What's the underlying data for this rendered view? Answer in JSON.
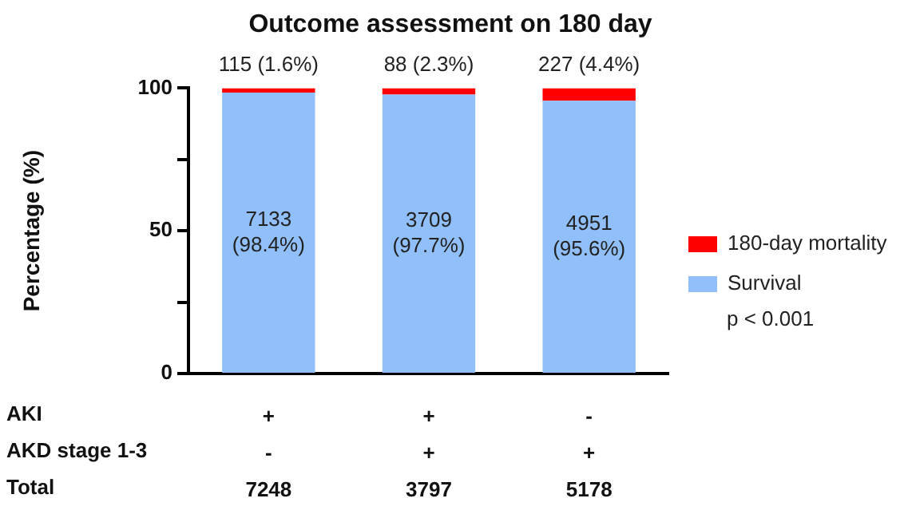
{
  "chart_data": {
    "type": "bar",
    "title": "Outcome assessment on 180 day",
    "ylabel": "Percentage (%)",
    "categories": [
      "+\n-\n7248",
      "+\n+\n3797",
      "-\n+\n5178"
    ],
    "stacked": true,
    "ylim": [
      0,
      100
    ],
    "yticks": [
      0,
      {
        "value": 25,
        "label": null
      },
      50,
      {
        "value": 75,
        "label": null
      },
      100
    ],
    "grid": false,
    "legend": "right",
    "series": [
      {
        "name": "Survival",
        "color": "#90bff9",
        "values": [
          98.4,
          97.7,
          95.6
        ],
        "value_labels": [
          "7133\n(98.4%)",
          "3709\n(97.7%)",
          "4951\n(95.6%)"
        ]
      },
      {
        "name": "180-day mortality",
        "color": "#ff0000",
        "values": [
          1.6,
          2.3,
          4.4
        ],
        "value_labels": [
          "115 (1.6%)",
          "88 (2.3%)",
          "227 (4.4%)"
        ]
      }
    ],
    "annotations": [
      "AKI",
      "AKD stage 1-3",
      "Total",
      "p < 0.001"
    ]
  }
}
